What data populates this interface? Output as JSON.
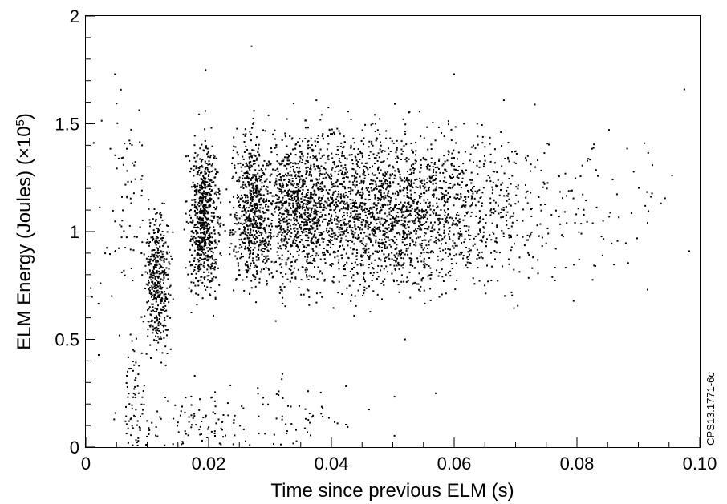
{
  "chart_data": {
    "type": "scatter",
    "xlabel": "Time since previous ELM (s)",
    "ylabel_main": "ELM Energy (Joules) (×10",
    "ylabel_exponent": "5",
    "ylabel_close": ")",
    "xlim": [
      0,
      0.1
    ],
    "ylim": [
      0,
      2
    ],
    "x_ticks": [
      {
        "value": 0,
        "label": "0"
      },
      {
        "value": 0.02,
        "label": "0.02"
      },
      {
        "value": 0.04,
        "label": "0.04"
      },
      {
        "value": 0.06,
        "label": "0.06"
      },
      {
        "value": 0.08,
        "label": "0.08"
      },
      {
        "value": 0.1,
        "label": "0.10"
      }
    ],
    "y_ticks": [
      {
        "value": 0,
        "label": "0"
      },
      {
        "value": 0.5,
        "label": "0.5"
      },
      {
        "value": 1,
        "label": "1"
      },
      {
        "value": 1.5,
        "label": "1.5"
      },
      {
        "value": 2,
        "label": "2"
      }
    ],
    "grid": false,
    "marker_color": "#000000",
    "side_label": "CPS13.1771-6c",
    "clusters": [
      {
        "x_center": 0.0117,
        "x_spread": 0.001,
        "y_center": 0.76,
        "y_spread": 0.15,
        "count": 420
      },
      {
        "x_center": 0.0193,
        "x_spread": 0.0012,
        "y_center": 1.06,
        "y_spread": 0.17,
        "count": 700
      },
      {
        "x_center": 0.0272,
        "x_spread": 0.0016,
        "y_center": 1.1,
        "y_spread": 0.17,
        "count": 650
      },
      {
        "x_center": 0.0345,
        "x_spread": 0.0022,
        "y_center": 1.13,
        "y_spread": 0.17,
        "count": 500
      },
      {
        "x_center": 0.045,
        "x_spread": 0.008,
        "y_center": 1.1,
        "y_spread": 0.18,
        "count": 1900
      },
      {
        "x_center": 0.06,
        "x_spread": 0.008,
        "y_center": 1.1,
        "y_spread": 0.17,
        "count": 700
      },
      {
        "x_center": 0.078,
        "x_spread": 0.008,
        "y_center": 1.1,
        "y_spread": 0.17,
        "count": 120
      },
      {
        "x_center": 0.008,
        "x_spread": 0.0008,
        "y_center": 0.2,
        "y_spread": 0.15,
        "count": 70
      },
      {
        "x_center": 0.012,
        "x_spread": 0.004,
        "y_center": 0.06,
        "y_spread": 0.05,
        "count": 40
      },
      {
        "x_center": 0.019,
        "x_spread": 0.003,
        "y_center": 0.1,
        "y_spread": 0.1,
        "count": 60
      },
      {
        "x_center": 0.029,
        "x_spread": 0.006,
        "y_center": 0.12,
        "y_spread": 0.1,
        "count": 60
      },
      {
        "x_center": 0.038,
        "x_spread": 0.005,
        "y_center": 0.12,
        "y_spread": 0.08,
        "count": 25
      },
      {
        "x_center": 0.003,
        "x_spread": 0.002,
        "y_center": 1.1,
        "y_spread": 0.25,
        "count": 20
      },
      {
        "x_center": 0.007,
        "x_spread": 0.0015,
        "y_center": 1.2,
        "y_spread": 0.25,
        "count": 60
      }
    ],
    "outliers": [
      {
        "x": 0.0915,
        "y": 1.04
      },
      {
        "x": 0.0975,
        "y": 1.66
      },
      {
        "x": 0.0915,
        "y": 0.73
      },
      {
        "x": 0.0955,
        "y": 1.26
      },
      {
        "x": 0.091,
        "y": 1.41
      },
      {
        "x": 0.083,
        "y": 0.84
      },
      {
        "x": 0.052,
        "y": 0.5
      },
      {
        "x": 0.057,
        "y": 0.25
      },
      {
        "x": 0.041,
        "y": 0.11
      },
      {
        "x": 0.027,
        "y": 1.86
      },
      {
        "x": 0.0195,
        "y": 1.75
      },
      {
        "x": 0.06,
        "y": 1.73
      }
    ]
  }
}
